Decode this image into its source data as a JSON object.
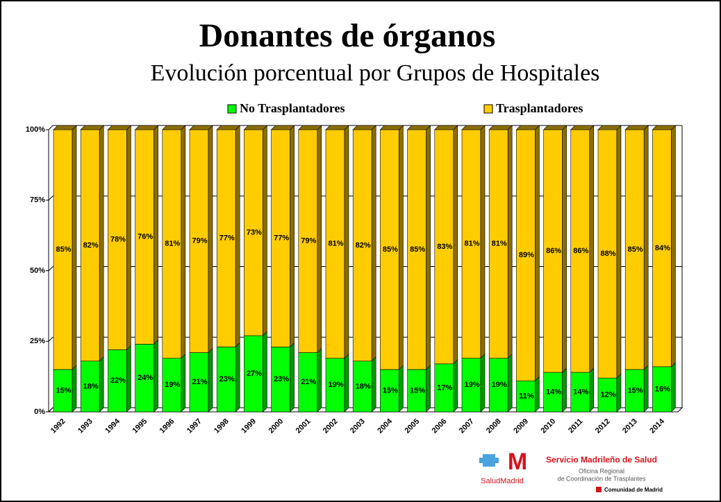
{
  "chart_data": {
    "type": "stacked-bar-3d",
    "title": "Donantes de órganos",
    "subtitle": "Evolución porcentual por Grupos de Hospitales",
    "categories": [
      "1992",
      "1993",
      "1994",
      "1995",
      "1996",
      "1997",
      "1998",
      "1999",
      "2000",
      "2001",
      "2002",
      "2003",
      "2004",
      "2005",
      "2006",
      "2007",
      "2008",
      "2009",
      "2010",
      "2011",
      "2012",
      "2013",
      "2014"
    ],
    "series": [
      {
        "name": "No Trasplantadores",
        "color": "#00ff00",
        "side": "#009900",
        "values": [
          15,
          18,
          22,
          24,
          19,
          21,
          23,
          27,
          23,
          21,
          19,
          18,
          15,
          15,
          17,
          19,
          19,
          11,
          14,
          14,
          12,
          15,
          16
        ],
        "value_labels": [
          "15%",
          "18%",
          "22%",
          "24%",
          "19%",
          "21%",
          "23%",
          "27%",
          "23%",
          "21%",
          "19%",
          "18%",
          "15%",
          "15%",
          "17%",
          "19%",
          "19%",
          "11%",
          "14%",
          "14%",
          "12%",
          "15%",
          "16%"
        ]
      },
      {
        "name": "Trasplantadores",
        "color": "#ffcc00",
        "side": "#8a6d00",
        "values": [
          85,
          82,
          78,
          76,
          81,
          79,
          77,
          73,
          77,
          79,
          81,
          82,
          85,
          85,
          83,
          81,
          81,
          89,
          86,
          86,
          88,
          85,
          84
        ],
        "value_labels": [
          "85%",
          "82%",
          "78%",
          "76%",
          "81%",
          "79%",
          "77%",
          "73%",
          "77%",
          "79%",
          "81%",
          "82%",
          "85%",
          "85%",
          "83%",
          "81%",
          "81%",
          "89%",
          "86%",
          "86%",
          "88%",
          "85%",
          "84%"
        ]
      }
    ],
    "ylim": [
      0,
      100
    ],
    "yticks": [
      {
        "value": 0,
        "label": "0%"
      },
      {
        "value": 25,
        "label": "25%"
      },
      {
        "value": 50,
        "label": "50%"
      },
      {
        "value": 75,
        "label": "75%"
      },
      {
        "value": 100,
        "label": "100%"
      }
    ],
    "grid": true
  },
  "logo": {
    "brand": "SaludMadrid",
    "service": "Servicio Madrileño de Salud",
    "office1": "Oficina Regional",
    "office2": "de Coordinación de Trasplantes",
    "region": "Comunidad de Madrid"
  }
}
